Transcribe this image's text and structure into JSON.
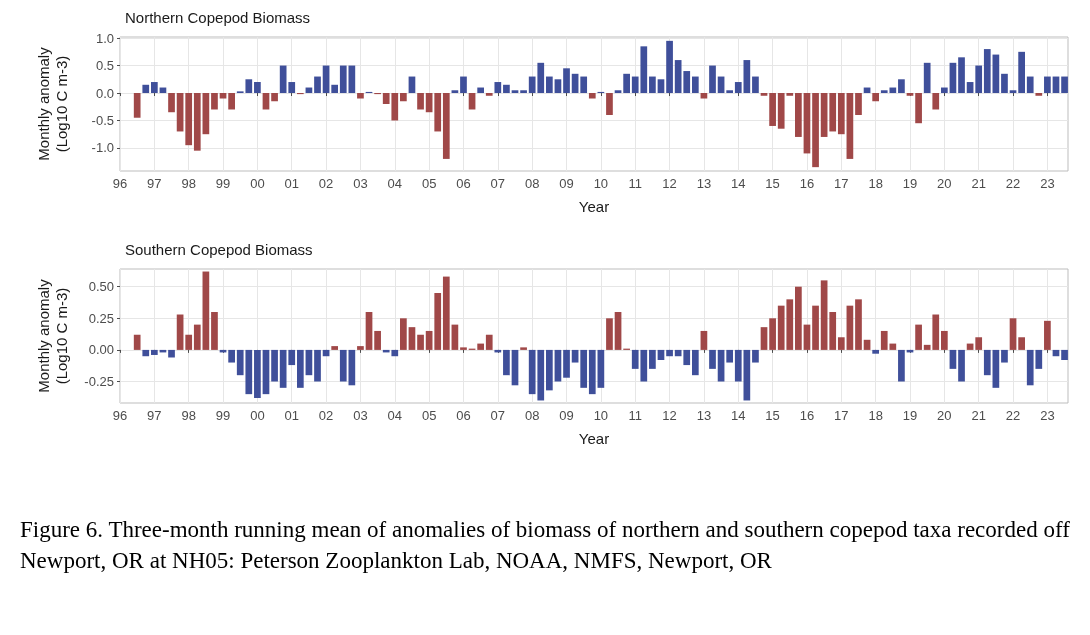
{
  "chart_data": [
    {
      "type": "bar",
      "title": "Northern Copepod Biomass",
      "xlabel": "Year",
      "ylabel": "Monthly anomaly\n(Log10 C m-3)",
      "x": [
        1996.5,
        1996.75,
        1997,
        1997.25,
        1997.5,
        1997.75,
        1998,
        1998.25,
        1998.5,
        1998.75,
        1999,
        1999.25,
        1999.5,
        1999.75,
        2000,
        2000.25,
        2000.5,
        2000.75,
        2001,
        2001.25,
        2001.5,
        2001.75,
        2002,
        2002.25,
        2002.5,
        2002.75,
        2003,
        2003.25,
        2003.5,
        2003.75,
        2004,
        2004.25,
        2004.5,
        2004.75,
        2005,
        2005.25,
        2005.5,
        2005.75,
        2006,
        2006.25,
        2006.5,
        2006.75,
        2007,
        2007.25,
        2007.5,
        2007.75,
        2008,
        2008.25,
        2008.5,
        2008.75,
        2009,
        2009.25,
        2009.5,
        2009.75,
        2010,
        2010.25,
        2010.5,
        2010.75,
        2011,
        2011.25,
        2011.5,
        2011.75,
        2012,
        2012.25,
        2012.5,
        2012.75,
        2013,
        2013.25,
        2013.5,
        2013.75,
        2014,
        2014.25,
        2014.5,
        2014.75,
        2015,
        2015.25,
        2015.5,
        2015.75,
        2016,
        2016.25,
        2016.5,
        2016.75,
        2017,
        2017.25,
        2017.5,
        2017.75,
        2018,
        2018.25,
        2018.5,
        2018.75,
        2019,
        2019.25,
        2019.5,
        2019.75,
        2020,
        2020.25,
        2020.5,
        2020.75,
        2021,
        2021.25,
        2021.5,
        2021.75,
        2022,
        2022.25,
        2022.5,
        2022.75,
        2023,
        2023.25,
        2023.5
      ],
      "values": [
        -0.45,
        0.15,
        0.2,
        0.1,
        -0.35,
        -0.7,
        -0.95,
        -1.05,
        -0.75,
        -0.3,
        -0.1,
        -0.3,
        0.03,
        0.25,
        0.2,
        -0.3,
        -0.15,
        0.5,
        0.2,
        -0.02,
        0.1,
        0.3,
        0.5,
        0.15,
        0.5,
        0.5,
        -0.1,
        0.02,
        -0.02,
        -0.2,
        -0.5,
        -0.15,
        0.3,
        -0.3,
        -0.35,
        -0.7,
        -1.2,
        0.05,
        0.3,
        -0.3,
        0.1,
        -0.05,
        0.2,
        0.15,
        0.05,
        0.05,
        0.3,
        0.55,
        0.3,
        0.25,
        0.45,
        0.35,
        0.3,
        -0.1,
        0.02,
        -0.4,
        0.05,
        0.35,
        0.3,
        0.85,
        0.3,
        0.25,
        0.95,
        0.6,
        0.4,
        0.3,
        -0.1,
        0.5,
        0.3,
        0.05,
        0.2,
        0.6,
        0.3,
        -0.05,
        -0.6,
        -0.65,
        -0.05,
        -0.8,
        -1.1,
        -1.35,
        -0.8,
        -0.7,
        -0.75,
        -1.2,
        -0.4,
        0.1,
        -0.15,
        0.05,
        0.1,
        0.25,
        -0.05,
        -0.55,
        0.55,
        -0.3,
        0.1,
        0.55,
        0.65,
        0.2,
        0.5,
        0.8,
        0.7,
        0.35,
        0.05,
        0.75,
        0.3,
        -0.05,
        0.3,
        0.3,
        0.3
      ],
      "colors": [
        "#a04848",
        "#3f4f9a",
        "#3f4f9a",
        "#3f4f9a",
        "#a04848",
        "#a04848",
        "#a04848",
        "#a04848",
        "#a04848",
        "#a04848",
        "#a04848",
        "#a04848",
        "#3f4f9a",
        "#3f4f9a",
        "#3f4f9a",
        "#a04848",
        "#a04848",
        "#3f4f9a",
        "#3f4f9a",
        "#a04848",
        "#3f4f9a",
        "#3f4f9a",
        "#3f4f9a",
        "#3f4f9a",
        "#3f4f9a",
        "#3f4f9a",
        "#a04848",
        "#3f4f9a",
        "#a04848",
        "#a04848",
        "#a04848",
        "#a04848",
        "#3f4f9a",
        "#a04848",
        "#a04848",
        "#a04848",
        "#a04848",
        "#3f4f9a",
        "#3f4f9a",
        "#a04848",
        "#3f4f9a",
        "#a04848",
        "#3f4f9a",
        "#3f4f9a",
        "#3f4f9a",
        "#3f4f9a",
        "#3f4f9a",
        "#3f4f9a",
        "#3f4f9a",
        "#3f4f9a",
        "#3f4f9a",
        "#3f4f9a",
        "#3f4f9a",
        "#a04848",
        "#3f4f9a",
        "#a04848",
        "#3f4f9a",
        "#3f4f9a",
        "#3f4f9a",
        "#3f4f9a",
        "#3f4f9a",
        "#3f4f9a",
        "#3f4f9a",
        "#3f4f9a",
        "#3f4f9a",
        "#3f4f9a",
        "#a04848",
        "#3f4f9a",
        "#3f4f9a",
        "#3f4f9a",
        "#3f4f9a",
        "#3f4f9a",
        "#3f4f9a",
        "#a04848",
        "#a04848",
        "#a04848",
        "#a04848",
        "#a04848",
        "#a04848",
        "#a04848",
        "#a04848",
        "#a04848",
        "#a04848",
        "#a04848",
        "#a04848",
        "#3f4f9a",
        "#a04848",
        "#3f4f9a",
        "#3f4f9a",
        "#3f4f9a",
        "#a04848",
        "#a04848",
        "#3f4f9a",
        "#a04848",
        "#3f4f9a",
        "#3f4f9a",
        "#3f4f9a",
        "#3f4f9a",
        "#3f4f9a",
        "#3f4f9a",
        "#3f4f9a",
        "#3f4f9a",
        "#3f4f9a",
        "#3f4f9a",
        "#3f4f9a",
        "#a04848",
        "#3f4f9a",
        "#3f4f9a",
        "#3f4f9a"
      ],
      "xlim": [
        1996,
        2023.6
      ],
      "ylim": [
        -1.42,
        1.02
      ],
      "xticks": [
        {
          "value": 1996,
          "label": "96"
        },
        {
          "value": 1997,
          "label": "97"
        },
        {
          "value": 1998,
          "label": "98"
        },
        {
          "value": 1999,
          "label": "99"
        },
        {
          "value": 2000,
          "label": "00"
        },
        {
          "value": 2001,
          "label": "01"
        },
        {
          "value": 2002,
          "label": "02"
        },
        {
          "value": 2003,
          "label": "03"
        },
        {
          "value": 2004,
          "label": "04"
        },
        {
          "value": 2005,
          "label": "05"
        },
        {
          "value": 2006,
          "label": "06"
        },
        {
          "value": 2007,
          "label": "07"
        },
        {
          "value": 2008,
          "label": "08"
        },
        {
          "value": 2009,
          "label": "09"
        },
        {
          "value": 2010,
          "label": "10"
        },
        {
          "value": 2011,
          "label": "11"
        },
        {
          "value": 2012,
          "label": "12"
        },
        {
          "value": 2013,
          "label": "13"
        },
        {
          "value": 2014,
          "label": "14"
        },
        {
          "value": 2015,
          "label": "15"
        },
        {
          "value": 2016,
          "label": "16"
        },
        {
          "value": 2017,
          "label": "17"
        },
        {
          "value": 2018,
          "label": "18"
        },
        {
          "value": 2019,
          "label": "19"
        },
        {
          "value": 2020,
          "label": "20"
        },
        {
          "value": 2021,
          "label": "21"
        },
        {
          "value": 2022,
          "label": "22"
        },
        {
          "value": 2023,
          "label": "23"
        }
      ],
      "yticks": [
        {
          "value": -1,
          "label": "-1.0"
        },
        {
          "value": -0.5,
          "label": "-0.5"
        },
        {
          "value": 0,
          "label": "0.0"
        },
        {
          "value": 0.5,
          "label": "0.5"
        },
        {
          "value": 1,
          "label": "1.0"
        }
      ],
      "grid": true
    },
    {
      "type": "bar",
      "title": "Southern Copepod Biomass",
      "xlabel": "Year",
      "ylabel": "Monthly anomaly\n(Log10 C m-3)",
      "x": [
        1996.5,
        1996.75,
        1997,
        1997.25,
        1997.5,
        1997.75,
        1998,
        1998.25,
        1998.5,
        1998.75,
        1999,
        1999.25,
        1999.5,
        1999.75,
        2000,
        2000.25,
        2000.5,
        2000.75,
        2001,
        2001.25,
        2001.5,
        2001.75,
        2002,
        2002.25,
        2002.5,
        2002.75,
        2003,
        2003.25,
        2003.5,
        2003.75,
        2004,
        2004.25,
        2004.5,
        2004.75,
        2005,
        2005.25,
        2005.5,
        2005.75,
        2006,
        2006.25,
        2006.5,
        2006.75,
        2007,
        2007.25,
        2007.5,
        2007.75,
        2008,
        2008.25,
        2008.5,
        2008.75,
        2009,
        2009.25,
        2009.5,
        2009.75,
        2010,
        2010.25,
        2010.5,
        2010.75,
        2011,
        2011.25,
        2011.5,
        2011.75,
        2012,
        2012.25,
        2012.5,
        2012.75,
        2013,
        2013.25,
        2013.5,
        2013.75,
        2014,
        2014.25,
        2014.5,
        2014.75,
        2015,
        2015.25,
        2015.5,
        2015.75,
        2016,
        2016.25,
        2016.5,
        2016.75,
        2017,
        2017.25,
        2017.5,
        2017.75,
        2018,
        2018.25,
        2018.5,
        2018.75,
        2019,
        2019.25,
        2019.5,
        2019.75,
        2020,
        2020.25,
        2020.5,
        2020.75,
        2021,
        2021.25,
        2021.5,
        2021.75,
        2022,
        2022.25,
        2022.5,
        2022.75,
        2023,
        2023.25,
        2023.5
      ],
      "values": [
        0.12,
        -0.05,
        -0.04,
        -0.02,
        -0.06,
        0.28,
        0.12,
        0.2,
        0.62,
        0.3,
        -0.02,
        -0.1,
        -0.2,
        -0.35,
        -0.38,
        -0.35,
        -0.25,
        -0.3,
        -0.12,
        -0.3,
        -0.2,
        -0.25,
        -0.05,
        0.03,
        -0.25,
        -0.28,
        0.03,
        0.3,
        0.15,
        -0.02,
        -0.05,
        0.25,
        0.18,
        0.12,
        0.15,
        0.45,
        0.58,
        0.2,
        0.02,
        0.01,
        0.05,
        0.12,
        -0.02,
        -0.2,
        -0.28,
        0.02,
        -0.35,
        -0.4,
        -0.32,
        -0.25,
        -0.22,
        -0.1,
        -0.3,
        -0.35,
        -0.3,
        0.25,
        0.3,
        0.01,
        -0.15,
        -0.25,
        -0.15,
        -0.08,
        -0.05,
        -0.05,
        -0.12,
        -0.2,
        0.15,
        -0.15,
        -0.25,
        -0.1,
        -0.25,
        -0.4,
        -0.1,
        0.18,
        0.25,
        0.35,
        0.4,
        0.5,
        0.2,
        0.35,
        0.55,
        0.3,
        0.1,
        0.35,
        0.4,
        0.08,
        -0.03,
        0.15,
        0.05,
        -0.25,
        -0.02,
        0.2,
        0.04,
        0.28,
        0.15,
        -0.15,
        -0.25,
        0.05,
        0.1,
        -0.2,
        -0.3,
        -0.1,
        0.25,
        0.1,
        -0.28,
        -0.15,
        0.23,
        -0.05,
        -0.08
      ],
      "colors": [
        "#a04848",
        "#3f4f9a",
        "#3f4f9a",
        "#3f4f9a",
        "#3f4f9a",
        "#a04848",
        "#a04848",
        "#a04848",
        "#a04848",
        "#a04848",
        "#3f4f9a",
        "#3f4f9a",
        "#3f4f9a",
        "#3f4f9a",
        "#3f4f9a",
        "#3f4f9a",
        "#3f4f9a",
        "#3f4f9a",
        "#3f4f9a",
        "#3f4f9a",
        "#3f4f9a",
        "#3f4f9a",
        "#3f4f9a",
        "#a04848",
        "#3f4f9a",
        "#3f4f9a",
        "#a04848",
        "#a04848",
        "#a04848",
        "#3f4f9a",
        "#3f4f9a",
        "#a04848",
        "#a04848",
        "#a04848",
        "#a04848",
        "#a04848",
        "#a04848",
        "#a04848",
        "#a04848",
        "#a04848",
        "#a04848",
        "#a04848",
        "#3f4f9a",
        "#3f4f9a",
        "#3f4f9a",
        "#a04848",
        "#3f4f9a",
        "#3f4f9a",
        "#3f4f9a",
        "#3f4f9a",
        "#3f4f9a",
        "#3f4f9a",
        "#3f4f9a",
        "#3f4f9a",
        "#3f4f9a",
        "#a04848",
        "#a04848",
        "#a04848",
        "#3f4f9a",
        "#3f4f9a",
        "#3f4f9a",
        "#3f4f9a",
        "#3f4f9a",
        "#3f4f9a",
        "#3f4f9a",
        "#3f4f9a",
        "#a04848",
        "#3f4f9a",
        "#3f4f9a",
        "#3f4f9a",
        "#3f4f9a",
        "#3f4f9a",
        "#3f4f9a",
        "#a04848",
        "#a04848",
        "#a04848",
        "#a04848",
        "#a04848",
        "#a04848",
        "#a04848",
        "#a04848",
        "#a04848",
        "#a04848",
        "#a04848",
        "#a04848",
        "#a04848",
        "#3f4f9a",
        "#a04848",
        "#a04848",
        "#3f4f9a",
        "#3f4f9a",
        "#a04848",
        "#a04848",
        "#a04848",
        "#a04848",
        "#3f4f9a",
        "#3f4f9a",
        "#a04848",
        "#a04848",
        "#3f4f9a",
        "#3f4f9a",
        "#3f4f9a",
        "#a04848",
        "#a04848",
        "#3f4f9a",
        "#3f4f9a",
        "#a04848",
        "#3f4f9a",
        "#3f4f9a"
      ],
      "xlim": [
        1996,
        2023.6
      ],
      "ylim": [
        -0.42,
        0.64
      ],
      "xticks": [
        {
          "value": 1996,
          "label": "96"
        },
        {
          "value": 1997,
          "label": "97"
        },
        {
          "value": 1998,
          "label": "98"
        },
        {
          "value": 1999,
          "label": "99"
        },
        {
          "value": 2000,
          "label": "00"
        },
        {
          "value": 2001,
          "label": "01"
        },
        {
          "value": 2002,
          "label": "02"
        },
        {
          "value": 2003,
          "label": "03"
        },
        {
          "value": 2004,
          "label": "04"
        },
        {
          "value": 2005,
          "label": "05"
        },
        {
          "value": 2006,
          "label": "06"
        },
        {
          "value": 2007,
          "label": "07"
        },
        {
          "value": 2008,
          "label": "08"
        },
        {
          "value": 2009,
          "label": "09"
        },
        {
          "value": 2010,
          "label": "10"
        },
        {
          "value": 2011,
          "label": "11"
        },
        {
          "value": 2012,
          "label": "12"
        },
        {
          "value": 2013,
          "label": "13"
        },
        {
          "value": 2014,
          "label": "14"
        },
        {
          "value": 2015,
          "label": "15"
        },
        {
          "value": 2016,
          "label": "16"
        },
        {
          "value": 2017,
          "label": "17"
        },
        {
          "value": 2018,
          "label": "18"
        },
        {
          "value": 2019,
          "label": "19"
        },
        {
          "value": 2020,
          "label": "20"
        },
        {
          "value": 2021,
          "label": "21"
        },
        {
          "value": 2022,
          "label": "22"
        },
        {
          "value": 2023,
          "label": "23"
        }
      ],
      "yticks": [
        {
          "value": -0.25,
          "label": "-0.25"
        },
        {
          "value": 0,
          "label": "0.00"
        },
        {
          "value": 0.25,
          "label": "0.25"
        },
        {
          "value": 0.5,
          "label": "0.50"
        }
      ],
      "grid": true,
      "annotations": [
        "Figure 6. Three-month running mean of anomalies of biomass of northern and southern copepod taxa recorded off Newport, OR at NH05: Peterson Zooplankton Lab, NOAA, NMFS, Newport, OR"
      ]
    }
  ]
}
